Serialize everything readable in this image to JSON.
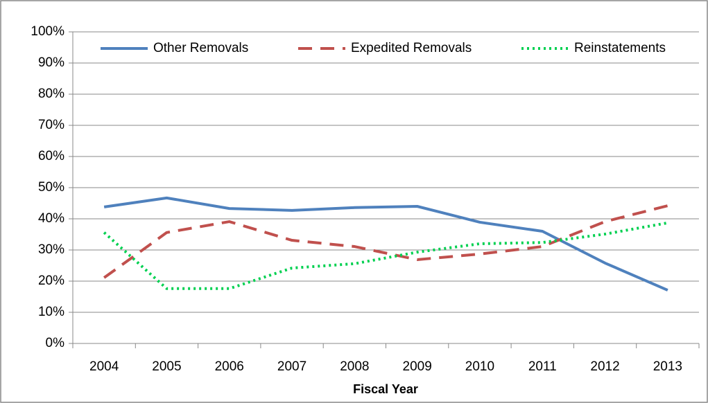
{
  "chart_data": {
    "type": "line",
    "xlabel": "Fiscal Year",
    "categories": [
      "2004",
      "2005",
      "2006",
      "2007",
      "2008",
      "2009",
      "2010",
      "2011",
      "2012",
      "2013"
    ],
    "series": [
      {
        "name": "Other Removals",
        "color": "#4f81bd",
        "style": "solid",
        "values": [
          43.8,
          46.7,
          43.3,
          42.7,
          43.6,
          44,
          38.9,
          36,
          25.8,
          17.1
        ]
      },
      {
        "name": "Expedited Removals",
        "color": "#c0504d",
        "style": "dashed",
        "values": [
          21.1,
          35.6,
          39.1,
          33.1,
          31.1,
          26.9,
          28.7,
          31.1,
          39.1,
          44.2
        ]
      },
      {
        "name": "Reinstatements",
        "color": "#00d050",
        "style": "dotted",
        "values": [
          35.6,
          17.6,
          17.6,
          24.2,
          25.6,
          29.3,
          32,
          32.4,
          35.1,
          38.7
        ]
      }
    ],
    "ylim": [
      0,
      100
    ],
    "yticks": [
      {
        "value": 0,
        "label": "0%"
      },
      {
        "value": 10,
        "label": "10%"
      },
      {
        "value": 20,
        "label": "20%"
      },
      {
        "value": 30,
        "label": "30%"
      },
      {
        "value": 40,
        "label": "40%"
      },
      {
        "value": 50,
        "label": "50%"
      },
      {
        "value": 60,
        "label": "60%"
      },
      {
        "value": 70,
        "label": "70%"
      },
      {
        "value": 80,
        "label": "80%"
      },
      {
        "value": 90,
        "label": "90%"
      },
      {
        "value": 100,
        "label": "100%"
      }
    ],
    "grid": true,
    "legend": "top"
  }
}
